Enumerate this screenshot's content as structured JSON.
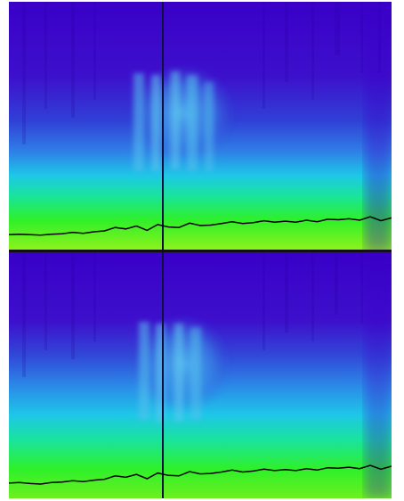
{
  "chart_data": [
    {
      "type": "heatmap",
      "panel": "top",
      "title": "",
      "xlabel": "",
      "ylabel": "",
      "colormap": [
        "#3a00c8",
        "#3d2bd6",
        "#2f7de6",
        "#1ec6e8",
        "#19e3a0",
        "#2ef02a",
        "#7cf01e"
      ],
      "grid": false,
      "trace": {
        "y_relative": [
          0.18,
          0.19,
          0.18,
          0.17,
          0.19,
          0.2,
          0.23,
          0.21,
          0.24,
          0.26,
          0.33,
          0.3,
          0.36,
          0.27,
          0.39,
          0.34,
          0.33,
          0.42,
          0.37,
          0.38,
          0.41,
          0.45,
          0.41,
          0.43,
          0.47,
          0.44,
          0.46,
          0.44,
          0.48,
          0.45,
          0.5,
          0.49,
          0.51,
          0.48,
          0.55,
          0.47,
          0.53
        ]
      }
    },
    {
      "type": "heatmap",
      "panel": "bottom",
      "title": "",
      "xlabel": "",
      "ylabel": "",
      "colormap": [
        "#3a00c8",
        "#3d2bd6",
        "#2f7de6",
        "#1ec6e8",
        "#19e3a0",
        "#2ef02a",
        "#7cf01e"
      ],
      "grid": false,
      "trace": {
        "y_relative": [
          0.19,
          0.2,
          0.18,
          0.17,
          0.2,
          0.21,
          0.24,
          0.22,
          0.25,
          0.27,
          0.34,
          0.31,
          0.37,
          0.28,
          0.4,
          0.35,
          0.34,
          0.43,
          0.38,
          0.39,
          0.42,
          0.46,
          0.42,
          0.44,
          0.48,
          0.45,
          0.47,
          0.45,
          0.49,
          0.46,
          0.51,
          0.5,
          0.52,
          0.49,
          0.56,
          0.48,
          0.54
        ]
      }
    }
  ]
}
